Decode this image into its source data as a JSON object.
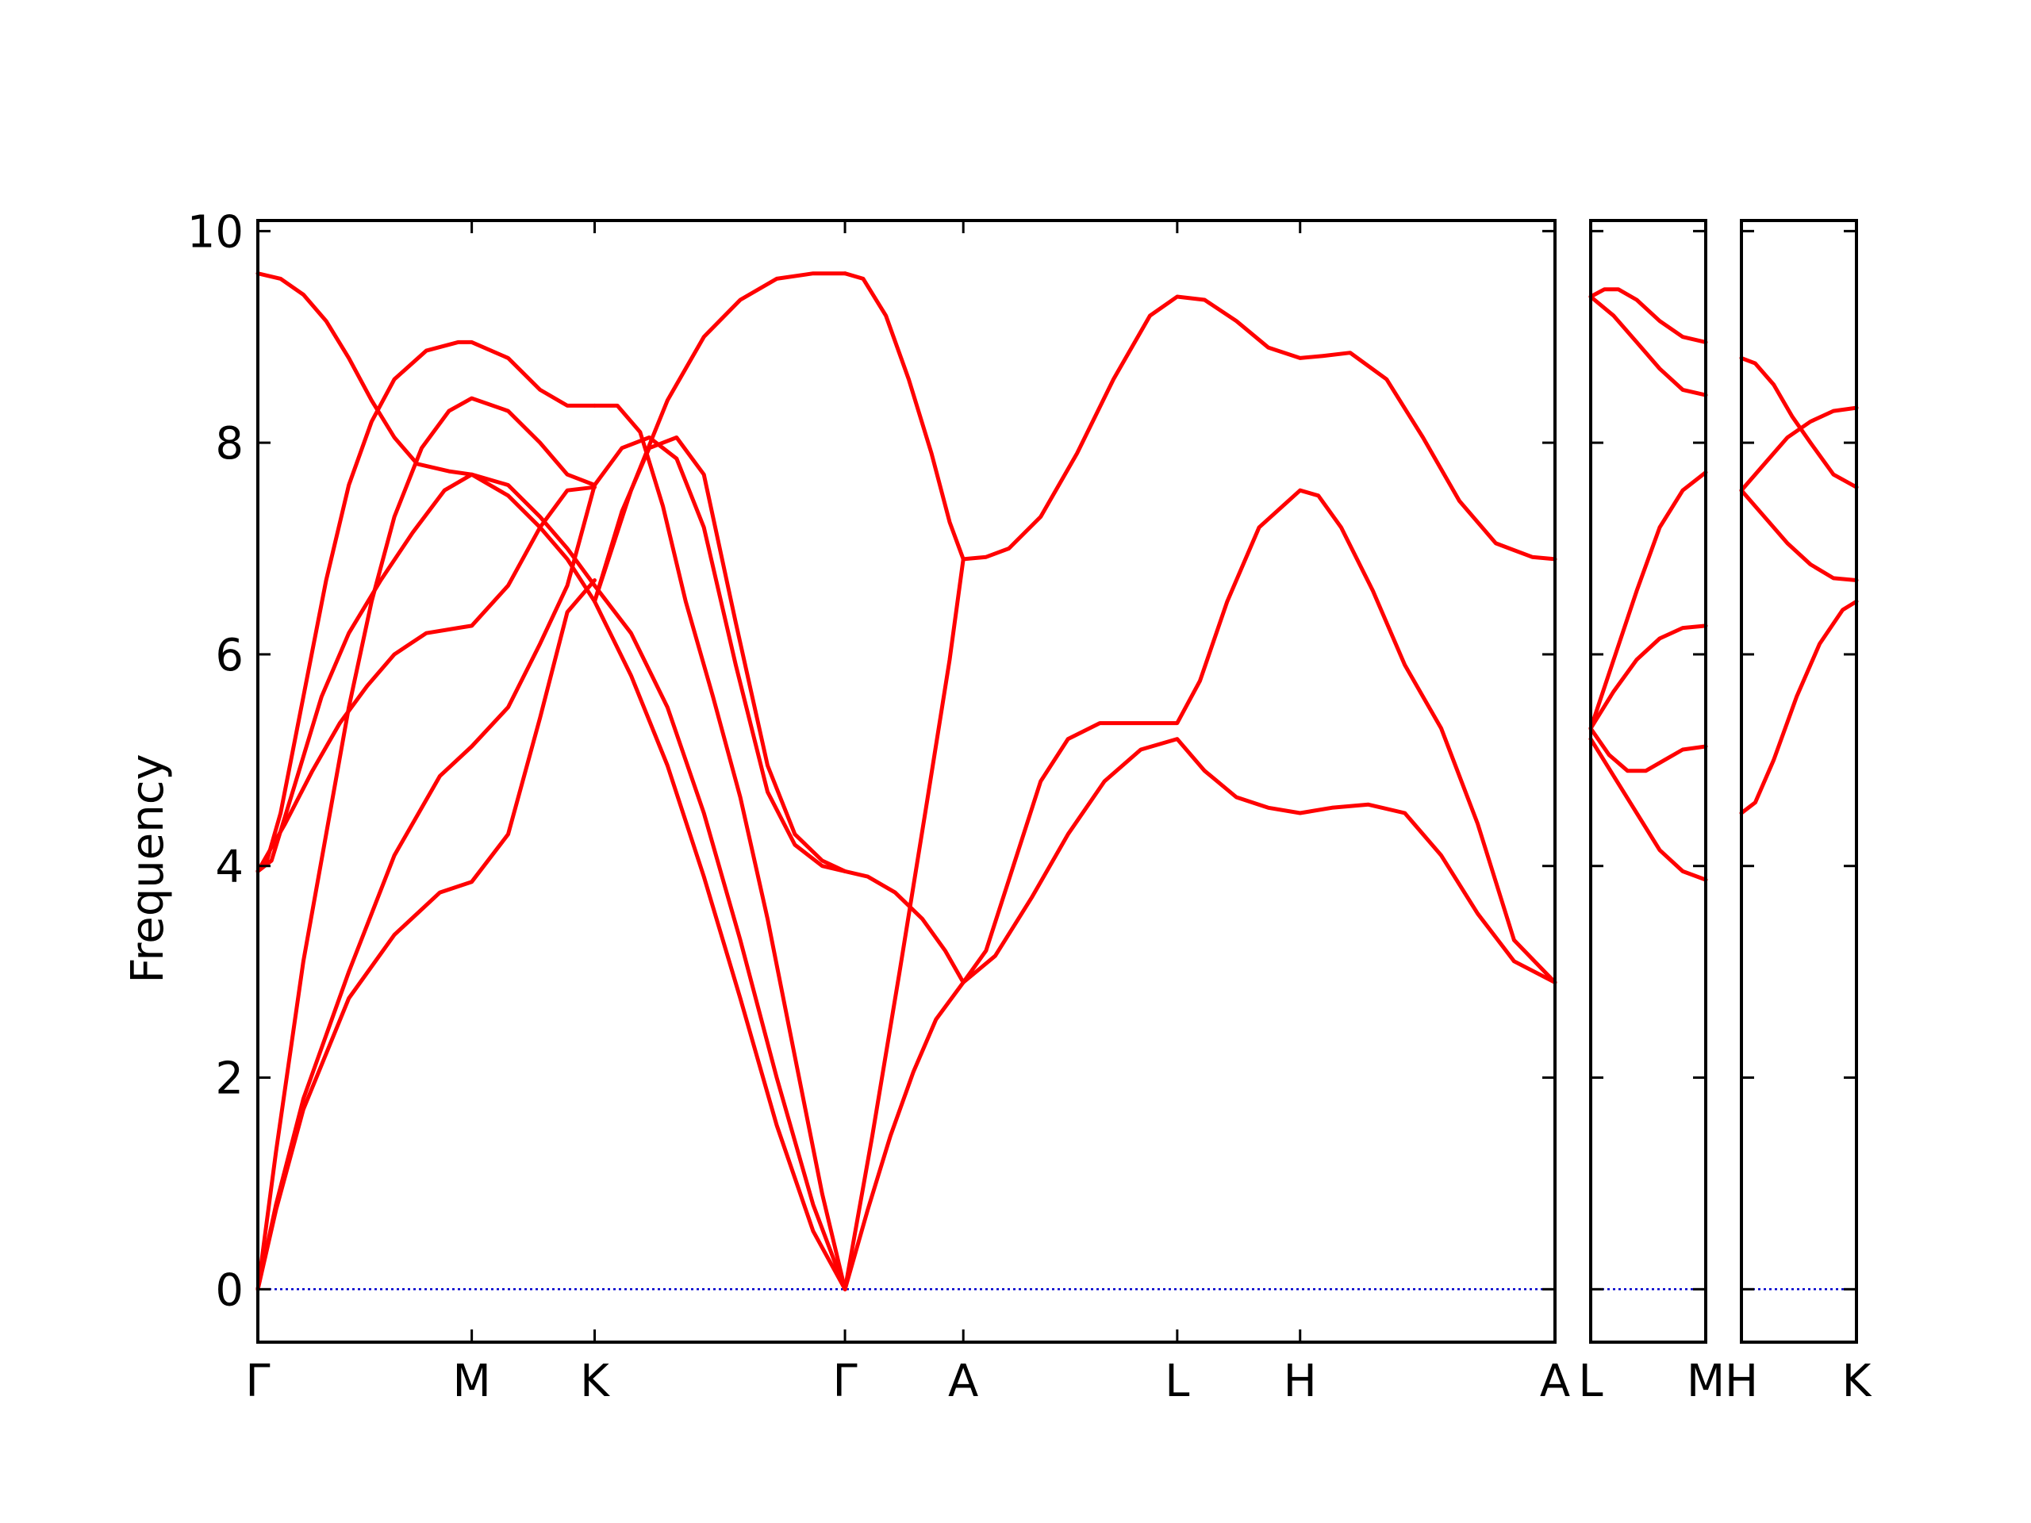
{
  "chart_data": {
    "type": "line",
    "ylabel": "Frequency",
    "ylim": [
      -0.5,
      10.1
    ],
    "yticks": [
      0,
      2,
      4,
      6,
      8,
      10
    ],
    "ytick_labels": [
      "0",
      "2",
      "4",
      "6",
      "8",
      "10"
    ],
    "grid": false,
    "line_color": "#ff0000",
    "zero_line_color": "#0000cc",
    "panels": [
      {
        "name": "panel-1",
        "xlim": [
          0,
          2.85
        ],
        "xticks": [
          0,
          0.47,
          0.74,
          1.29,
          1.55,
          2.02,
          2.29,
          2.85
        ],
        "xtick_labels": [
          "Γ",
          "M",
          "K",
          "Γ",
          "A",
          "L",
          "H",
          "A"
        ],
        "series": [
          {
            "x": [
              0,
              0.04,
              0.1,
              0.2,
              0.3,
              0.4,
              0.47,
              0.55,
              0.62,
              0.68,
              0.74
            ],
            "y": [
              0,
              0.8,
              1.8,
              3.0,
              4.1,
              4.85,
              5.13,
              5.5,
              6.1,
              6.65,
              7.6
            ]
          },
          {
            "x": [
              0,
              0.04,
              0.1,
              0.2,
              0.3,
              0.4,
              0.47,
              0.55,
              0.62,
              0.68,
              0.74
            ],
            "y": [
              0,
              0.75,
              1.7,
              2.75,
              3.35,
              3.75,
              3.85,
              4.3,
              5.4,
              6.4,
              6.7
            ]
          },
          {
            "x": [
              0,
              0.04,
              0.1,
              0.15,
              0.2,
              0.25,
              0.3,
              0.36,
              0.42,
              0.47,
              0.55,
              0.62,
              0.68,
              0.74
            ],
            "y": [
              0,
              1.3,
              3.1,
              4.3,
              5.5,
              6.5,
              7.3,
              7.95,
              8.3,
              8.42,
              8.3,
              8.0,
              7.7,
              7.6
            ]
          },
          {
            "x": [
              0,
              0.03,
              0.08,
              0.14,
              0.2,
              0.27,
              0.34,
              0.41,
              0.47,
              0.55,
              0.62,
              0.68,
              0.74
            ],
            "y": [
              3.95,
              4.05,
              4.75,
              5.6,
              6.2,
              6.7,
              7.15,
              7.55,
              7.7,
              7.6,
              7.3,
              7.0,
              6.65
            ]
          },
          {
            "x": [
              0,
              0.02,
              0.05,
              0.1,
              0.15,
              0.2,
              0.25,
              0.3,
              0.37,
              0.44,
              0.47,
              0.55,
              0.62,
              0.68,
              0.74
            ],
            "y": [
              3.95,
              4.05,
              4.5,
              5.6,
              6.7,
              7.6,
              8.2,
              8.6,
              8.87,
              8.95,
              8.95,
              8.8,
              8.5,
              8.35,
              8.35
            ]
          },
          {
            "x": [
              0,
              0.06,
              0.12,
              0.18,
              0.24,
              0.3,
              0.37,
              0.44,
              0.47,
              0.55,
              0.62,
              0.68,
              0.74
            ],
            "y": [
              3.95,
              4.4,
              4.9,
              5.35,
              5.7,
              6.0,
              6.2,
              6.25,
              6.27,
              6.65,
              7.2,
              7.55,
              7.58
            ]
          },
          {
            "x": [
              0,
              0.05,
              0.1,
              0.15,
              0.2,
              0.25,
              0.3,
              0.35,
              0.42,
              0.47,
              0.55,
              0.62,
              0.68,
              0.74
            ],
            "y": [
              9.6,
              9.55,
              9.4,
              9.15,
              8.8,
              8.4,
              8.05,
              7.8,
              7.73,
              7.7,
              7.5,
              7.2,
              6.9,
              6.5
            ]
          },
          {
            "x": [
              0.74,
              0.8,
              0.86,
              0.92,
              0.98,
              1.05,
              1.12,
              1.18,
              1.24,
              1.29
            ],
            "y": [
              6.5,
              7.35,
              7.95,
              8.05,
              7.7,
              6.3,
              4.95,
              4.3,
              4.05,
              3.95
            ]
          },
          {
            "x": [
              0.74,
              0.8,
              0.86,
              0.92,
              0.98,
              1.05,
              1.12,
              1.18,
              1.24,
              1.29
            ],
            "y": [
              7.6,
              7.95,
              8.05,
              7.85,
              7.2,
              5.9,
              4.7,
              4.2,
              4.0,
              3.95
            ]
          },
          {
            "x": [
              0.74,
              0.79,
              0.84,
              0.89,
              0.94,
              1.0,
              1.06,
              1.12,
              1.18,
              1.24,
              1.29
            ],
            "y": [
              8.35,
              8.35,
              8.1,
              7.4,
              6.5,
              5.6,
              4.65,
              3.5,
              2.2,
              0.9,
              0
            ]
          },
          {
            "x": [
              0.74,
              0.82,
              0.9,
              0.98,
              1.06,
              1.14,
              1.22,
              1.29
            ],
            "y": [
              6.65,
              6.2,
              5.5,
              4.5,
              3.3,
              2.0,
              0.8,
              0
            ]
          },
          {
            "x": [
              0.74,
              0.82,
              0.9,
              0.98,
              1.06,
              1.14,
              1.22,
              1.29
            ],
            "y": [
              6.5,
              5.8,
              4.95,
              3.9,
              2.75,
              1.55,
              0.55,
              0
            ]
          },
          {
            "x": [
              0.74,
              0.82,
              0.9,
              0.98,
              1.06,
              1.14,
              1.22,
              1.29
            ],
            "y": [
              6.5,
              7.55,
              8.4,
              9.0,
              9.35,
              9.55,
              9.6,
              9.6
            ]
          },
          {
            "x": [
              1.29,
              1.33,
              1.38,
              1.43,
              1.48,
              1.52,
              1.55
            ],
            "y": [
              9.6,
              9.55,
              9.2,
              8.6,
              7.9,
              7.25,
              6.9
            ]
          },
          {
            "x": [
              1.29,
              1.35,
              1.41,
              1.47,
              1.52,
              1.55
            ],
            "y": [
              0,
              1.45,
              3.0,
              4.6,
              5.95,
              6.9
            ]
          },
          {
            "x": [
              1.29,
              1.34,
              1.39,
              1.44,
              1.49,
              1.55
            ],
            "y": [
              0,
              0.75,
              1.45,
              2.05,
              2.55,
              2.9
            ]
          },
          {
            "x": [
              1.29,
              1.34,
              1.4,
              1.46,
              1.51,
              1.55
            ],
            "y": [
              3.95,
              3.9,
              3.75,
              3.5,
              3.2,
              2.9
            ]
          },
          {
            "x": [
              1.55,
              1.6,
              1.65,
              1.72,
              1.8,
              1.88,
              1.96,
              2.02,
              2.08,
              2.15,
              2.22,
              2.29,
              2.34,
              2.4,
              2.48,
              2.56,
              2.64,
              2.72,
              2.8,
              2.85
            ],
            "y": [
              6.9,
              6.92,
              7.0,
              7.3,
              7.9,
              8.6,
              9.2,
              9.38,
              9.35,
              9.15,
              8.9,
              8.8,
              8.82,
              8.85,
              8.6,
              8.05,
              7.45,
              7.05,
              6.92,
              6.9
            ]
          },
          {
            "x": [
              1.55,
              1.6,
              1.66,
              1.72,
              1.78,
              1.85,
              1.92,
              2.02,
              2.07,
              2.13,
              2.2,
              2.29,
              2.33,
              2.38,
              2.45,
              2.52,
              2.6,
              2.68,
              2.76,
              2.85
            ],
            "y": [
              2.9,
              3.2,
              4.0,
              4.8,
              5.2,
              5.35,
              5.35,
              5.35,
              5.75,
              6.5,
              7.2,
              7.55,
              7.5,
              7.2,
              6.6,
              5.9,
              5.3,
              4.4,
              3.3,
              2.9
            ]
          },
          {
            "x": [
              1.55,
              1.62,
              1.7,
              1.78,
              1.86,
              1.94,
              2.02,
              2.08,
              2.15,
              2.22,
              2.29,
              2.36,
              2.44,
              2.52,
              2.6,
              2.68,
              2.76,
              2.85
            ],
            "y": [
              2.9,
              3.15,
              3.7,
              4.3,
              4.8,
              5.1,
              5.2,
              4.9,
              4.65,
              4.55,
              4.5,
              4.55,
              4.58,
              4.5,
              4.1,
              3.55,
              3.1,
              2.9
            ]
          }
        ]
      },
      {
        "name": "panel-2",
        "xlim": [
          0,
          0.25
        ],
        "xticks": [
          0,
          0.25
        ],
        "xtick_labels": [
          "L",
          "M"
        ],
        "series": [
          {
            "x": [
              0,
              0.03,
              0.06,
              0.1,
              0.15,
              0.2,
              0.25
            ],
            "y": [
              9.38,
              9.45,
              9.45,
              9.35,
              9.15,
              9.0,
              8.95
            ]
          },
          {
            "x": [
              0,
              0.05,
              0.1,
              0.15,
              0.2,
              0.25
            ],
            "y": [
              9.38,
              9.2,
              8.95,
              8.7,
              8.5,
              8.45
            ]
          },
          {
            "x": [
              0,
              0.05,
              0.1,
              0.15,
              0.2,
              0.25
            ],
            "y": [
              5.3,
              5.95,
              6.6,
              7.2,
              7.55,
              7.72
            ]
          },
          {
            "x": [
              0,
              0.05,
              0.1,
              0.15,
              0.2,
              0.25
            ],
            "y": [
              5.3,
              5.65,
              5.95,
              6.15,
              6.25,
              6.27
            ]
          },
          {
            "x": [
              0,
              0.04,
              0.08,
              0.12,
              0.16,
              0.2,
              0.25
            ],
            "y": [
              5.3,
              5.05,
              4.9,
              4.9,
              5.0,
              5.1,
              5.13
            ]
          },
          {
            "x": [
              0,
              0.05,
              0.1,
              0.15,
              0.2,
              0.25
            ],
            "y": [
              5.2,
              4.85,
              4.5,
              4.15,
              3.95,
              3.87
            ]
          }
        ]
      },
      {
        "name": "panel-3",
        "xlim": [
          0,
          0.25
        ],
        "xticks": [
          0,
          0.25
        ],
        "xtick_labels": [
          "H",
          "K"
        ],
        "series": [
          {
            "x": [
              0,
              0.03,
              0.07,
              0.11,
              0.15,
              0.2,
              0.25
            ],
            "y": [
              8.8,
              8.75,
              8.55,
              8.25,
              8.0,
              7.7,
              7.58
            ]
          },
          {
            "x": [
              0,
              0.05,
              0.1,
              0.15,
              0.2,
              0.25
            ],
            "y": [
              7.55,
              7.8,
              8.05,
              8.2,
              8.3,
              8.33
            ]
          },
          {
            "x": [
              0,
              0.05,
              0.1,
              0.15,
              0.2,
              0.25
            ],
            "y": [
              7.55,
              7.3,
              7.05,
              6.85,
              6.72,
              6.7
            ]
          },
          {
            "x": [
              0,
              0.03,
              0.07,
              0.12,
              0.17,
              0.22,
              0.25
            ],
            "y": [
              4.5,
              4.6,
              5.0,
              5.6,
              6.1,
              6.42,
              6.5
            ]
          }
        ]
      }
    ]
  }
}
